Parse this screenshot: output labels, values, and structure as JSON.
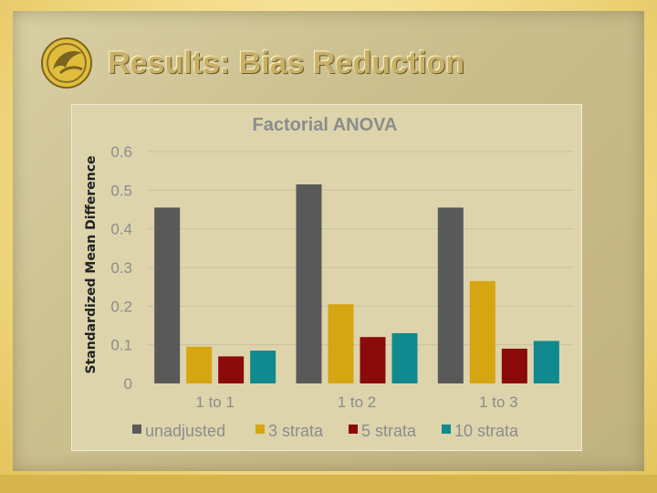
{
  "slide": {
    "title": "Results: Bias Reduction",
    "logo_icon": "pegasus-logo-icon"
  },
  "colors": {
    "series": [
      "#595959",
      "#d6a512",
      "#8b0a0a",
      "#10898f"
    ],
    "gridline": "#c9c1a0",
    "tick_text": "#8c8c8c"
  },
  "chart_data": {
    "type": "bar",
    "title": "Factorial ANOVA",
    "xlabel": "",
    "ylabel": "Standardized Mean Difference",
    "categories": [
      "1 to 1",
      "1 to 2",
      "1 to 3"
    ],
    "series": [
      {
        "name": "unadjusted",
        "values": [
          0.455,
          0.515,
          0.455
        ]
      },
      {
        "name": "3 strata",
        "values": [
          0.095,
          0.205,
          0.265
        ]
      },
      {
        "name": "5 strata",
        "values": [
          0.07,
          0.12,
          0.09
        ]
      },
      {
        "name": "10 strata",
        "values": [
          0.085,
          0.13,
          0.11
        ]
      }
    ],
    "ylim": [
      0,
      0.6
    ],
    "yticks": [
      {
        "value": 0,
        "label": "0"
      },
      {
        "value": 0.1,
        "label": "0.1"
      },
      {
        "value": 0.2,
        "label": "0.2"
      },
      {
        "value": 0.3,
        "label": "0.3"
      },
      {
        "value": 0.4,
        "label": "0.4"
      },
      {
        "value": 0.5,
        "label": "0.5"
      },
      {
        "value": 0.6,
        "label": "0.6"
      }
    ],
    "grid": true,
    "legend_position": "bottom"
  }
}
